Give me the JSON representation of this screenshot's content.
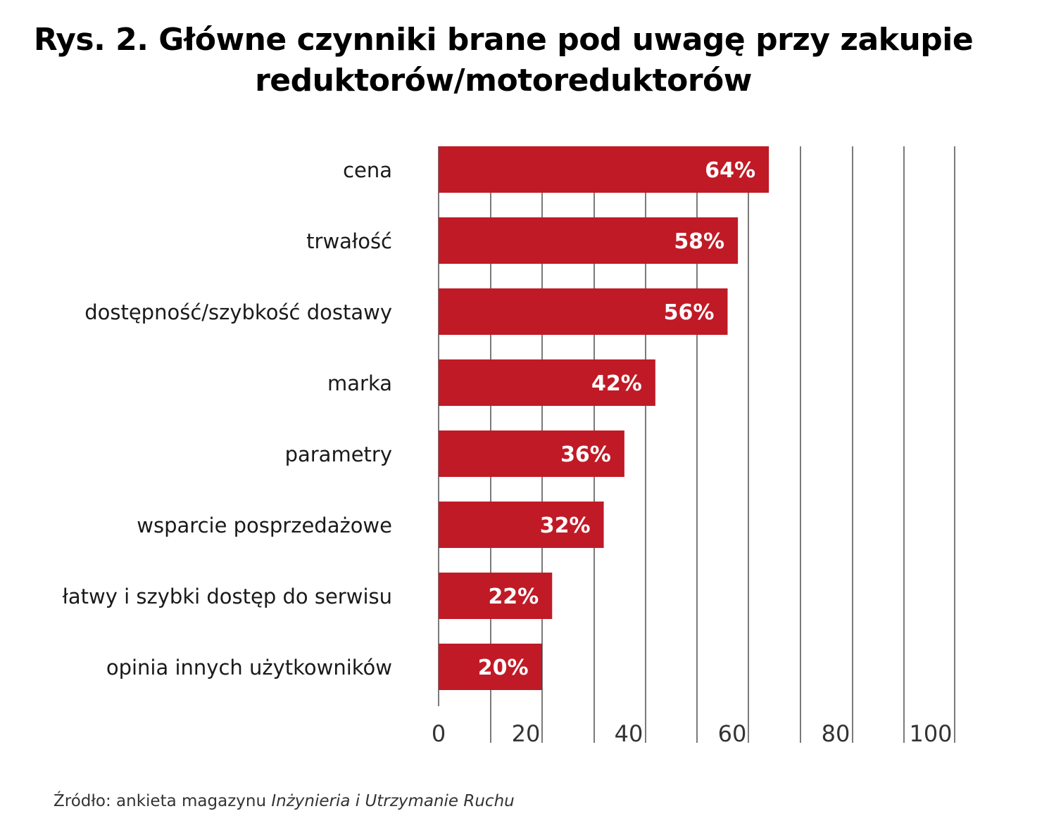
{
  "title_line1": "Rys. 2. Główne czynniki brane pod uwagę przy zakupie",
  "title_line2": "reduktorów/motoreduktorów",
  "source_prefix": "Źródło: ankieta magazynu ",
  "source_italic": "Inżynieria i Utrzymanie Ruchu",
  "bar_color": "#c01a26",
  "chart_data": {
    "type": "bar",
    "orientation": "horizontal",
    "title": "Rys. 2. Główne czynniki brane pod uwagę przy zakupie reduktorów/motoreduktorów",
    "categories": [
      "cena",
      "trwałość",
      "dostępność/szybkość dostawy",
      "marka",
      "parametry",
      "wsparcie posprzedażowe",
      "łatwy i szybki dostęp do serwisu",
      "opinia innych użytkowników"
    ],
    "values": [
      64,
      58,
      56,
      42,
      36,
      32,
      22,
      20
    ],
    "value_labels": [
      "64%",
      "58%",
      "56%",
      "42%",
      "36%",
      "32%",
      "22%",
      "20%"
    ],
    "xlim": [
      0,
      100
    ],
    "xticks": [
      "0",
      "20",
      "40",
      "60",
      "80",
      "100"
    ],
    "grid": true
  }
}
